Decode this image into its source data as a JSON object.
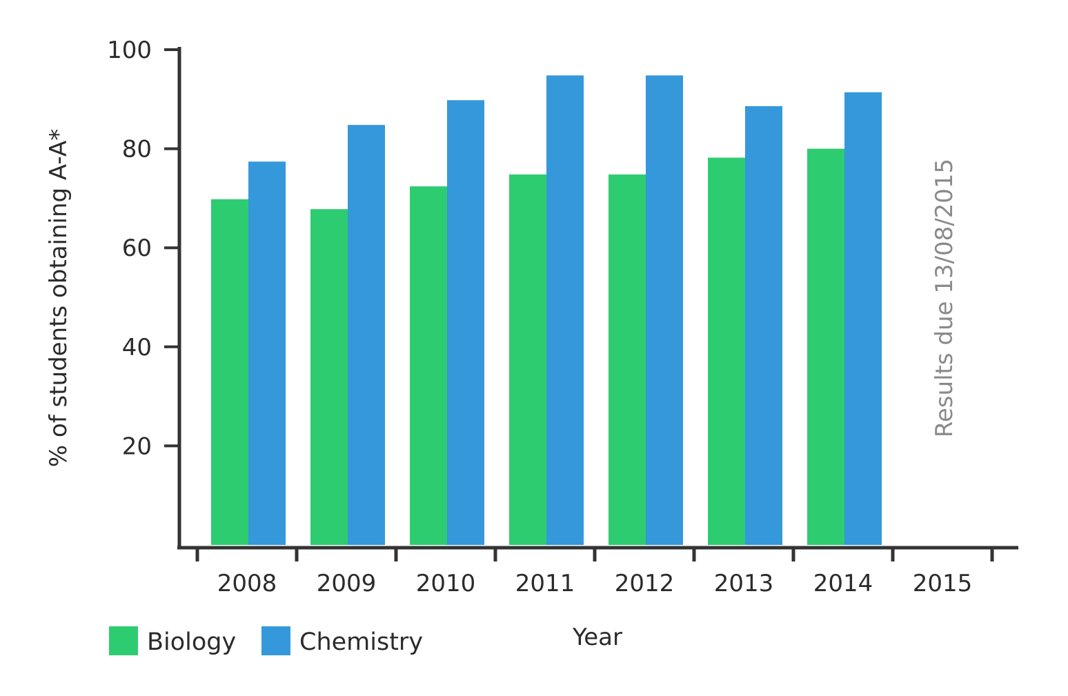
{
  "chart_data": {
    "type": "bar",
    "xlabel": "Year",
    "ylabel": "% of students obtaining A-A*",
    "ylim": [
      0,
      100
    ],
    "yticks": [
      20,
      40,
      60,
      80,
      100
    ],
    "categories": [
      "2008",
      "2009",
      "2010",
      "2011",
      "2012",
      "2013",
      "2014",
      "2015"
    ],
    "series": [
      {
        "name": "Biology",
        "color": "#2ecc71",
        "values": [
          69.8,
          67.8,
          72.4,
          74.8,
          74.8,
          78.2,
          80.0,
          null
        ]
      },
      {
        "name": "Chemistry",
        "color": "#3498db",
        "values": [
          77.4,
          84.8,
          89.8,
          94.8,
          94.8,
          88.6,
          91.4,
          null
        ]
      }
    ],
    "annotation": {
      "text": "Results due 13/08/2015",
      "category": "2015"
    },
    "legend": "bottom-left",
    "grid": false,
    "axis_color": "#333333"
  }
}
